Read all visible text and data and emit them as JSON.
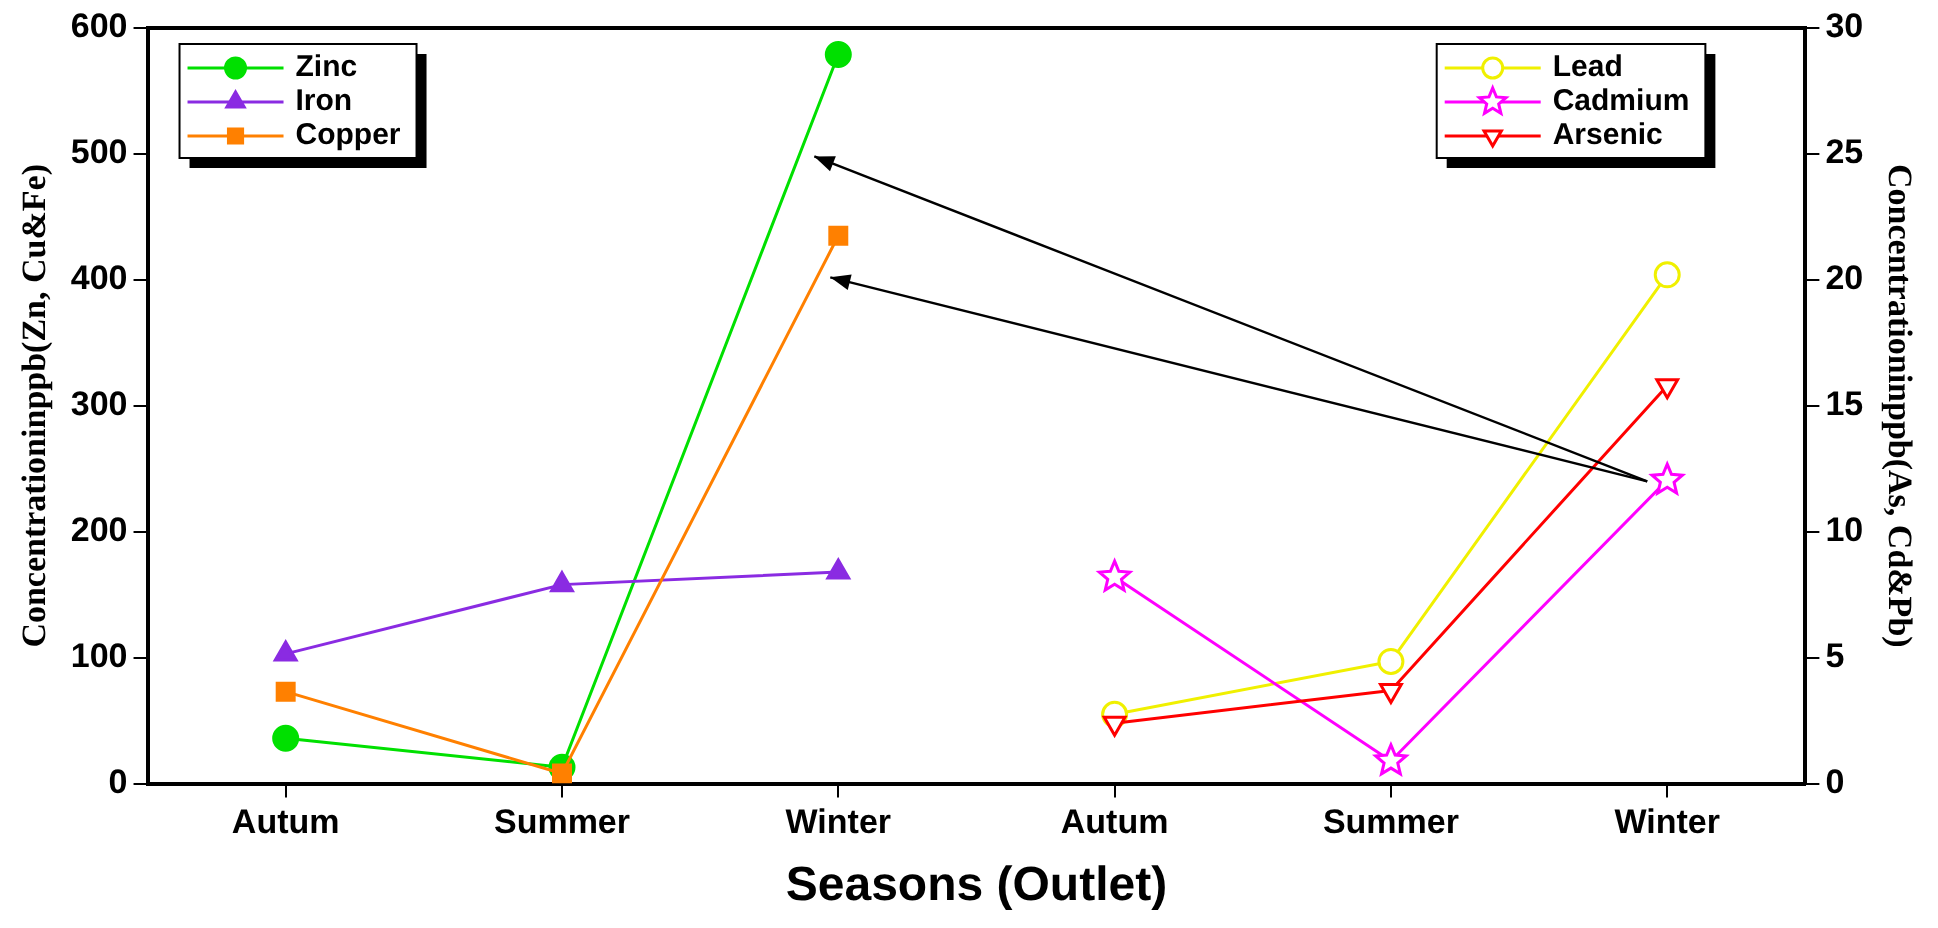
{
  "chart_data": {
    "type": "line",
    "xlabel": "Seasons (Outlet)",
    "ylabel": "Concentrationinppb(Zn, Cu&Fe)",
    "y2label": "Concentrationinppb(As, Cd&Pb)",
    "categories": [
      "Autum",
      "Summer",
      "Winter",
      "Autum",
      "Summer",
      "Winter"
    ],
    "ylim": [
      0,
      600
    ],
    "yticks": [
      0,
      100,
      200,
      300,
      400,
      500,
      600
    ],
    "y2lim": [
      0,
      30
    ],
    "y2ticks": [
      0,
      5,
      10,
      15,
      20,
      25,
      30
    ],
    "grid": false,
    "legend": "top",
    "line_style": "solid",
    "series": [
      {
        "name": "Zinc",
        "color": "#00e000",
        "marker": "circle",
        "values": [
          36,
          13,
          579,
          null,
          null,
          null
        ]
      },
      {
        "name": "Iron",
        "color": "#8a2be2",
        "marker": "triangle",
        "values": [
          103,
          158,
          168,
          null,
          null,
          null
        ]
      },
      {
        "name": "Copper",
        "color": "#ff8000",
        "marker": "square",
        "values": [
          73,
          8,
          435,
          null,
          null,
          null
        ]
      },
      {
        "name": "Lead",
        "color": "#f0f000",
        "marker": "circle",
        "axis": "y2",
        "values": [
          null,
          null,
          null,
          2.75,
          4.85,
          20.2
        ]
      },
      {
        "name": "Cadmium",
        "color": "#ff00ff",
        "marker": "star",
        "axis": "y2",
        "values": [
          null,
          null,
          null,
          8.2,
          0.9,
          12.05
        ]
      },
      {
        "name": "Arsenic",
        "color": "#ff0000",
        "marker": "triangle",
        "axis": "y2",
        "values": [
          null,
          null,
          null,
          2.4,
          3.7,
          15.8
        ]
      }
    ]
  }
}
